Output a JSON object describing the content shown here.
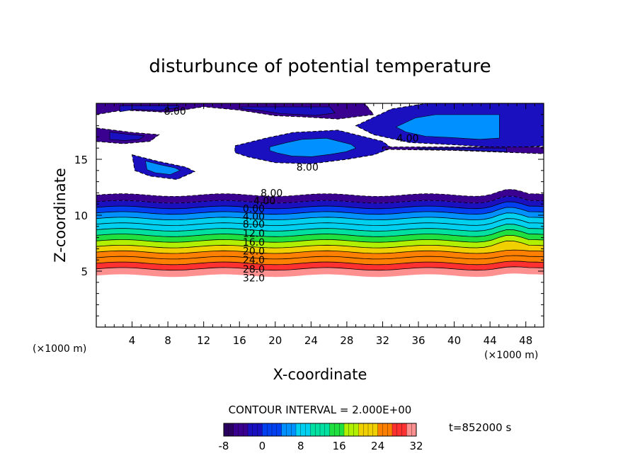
{
  "chart_data": {
    "type": "contour",
    "title": "disturbunce of potential temperature",
    "xlabel": "X-coordinate",
    "ylabel": "Z-coordinate",
    "x_unit_left": "(×1000 m)",
    "x_unit_right": "(×1000 m)",
    "xlim": [
      0,
      50
    ],
    "ylim": [
      0,
      20
    ],
    "x_ticks": [
      4,
      8,
      12,
      16,
      20,
      24,
      28,
      32,
      36,
      40,
      44,
      48
    ],
    "y_ticks": [
      5,
      10,
      15
    ],
    "contour_interval_label": "CONTOUR INTERVAL = 2.000E+00",
    "time_label": "t=852000 s",
    "colorbar": {
      "min": -8,
      "max": 32,
      "ticks": [
        -8,
        0,
        8,
        16,
        24,
        32
      ],
      "colors": [
        "#2a0060",
        "#3a0090",
        "#1a10c0",
        "#0040f0",
        "#0090ff",
        "#00d0f0",
        "#00e0a0",
        "#20e040",
        "#b0f000",
        "#f0d000",
        "#ff8000",
        "#ff3030",
        "#ff9090"
      ]
    },
    "contour_labels": [
      {
        "label": "8.00",
        "x": 8.8,
        "z": 19.3
      },
      {
        "label": "4.00",
        "x": 34.8,
        "z": 16.9
      },
      {
        "label": "8.00",
        "x": 23.6,
        "z": 14.3
      },
      {
        "label": "8.00",
        "x": 19.6,
        "z": 12.0
      },
      {
        "label": "4.00",
        "x": 18.8,
        "z": 11.3
      },
      {
        "label": "0.00",
        "x": 17.6,
        "z": 10.6
      },
      {
        "label": "4.00",
        "x": 17.6,
        "z": 9.9
      },
      {
        "label": "8.00",
        "x": 17.6,
        "z": 9.2
      },
      {
        "label": "12.0",
        "x": 17.6,
        "z": 8.4
      },
      {
        "label": "16.0",
        "x": 17.6,
        "z": 7.6
      },
      {
        "label": "20.0",
        "x": 17.6,
        "z": 6.8
      },
      {
        "label": "24.0",
        "x": 17.6,
        "z": 6.0
      },
      {
        "label": "28.0",
        "x": 17.6,
        "z": 5.2
      },
      {
        "label": "32.0",
        "x": 17.6,
        "z": 4.4
      }
    ],
    "bands_z": [
      {
        "z0": 4.6,
        "z1": 5.2,
        "value": 32
      },
      {
        "z0": 5.2,
        "z1": 5.7,
        "value": 28
      },
      {
        "z0": 5.7,
        "z1": 6.2,
        "value": 26
      },
      {
        "z0": 6.2,
        "z1": 6.7,
        "value": 24
      },
      {
        "z0": 6.7,
        "z1": 7.2,
        "value": 22
      },
      {
        "z0": 7.2,
        "z1": 7.7,
        "value": 19
      },
      {
        "z0": 7.7,
        "z1": 8.2,
        "value": 16
      },
      {
        "z0": 8.2,
        "z1": 8.7,
        "value": 13
      },
      {
        "z0": 8.7,
        "z1": 9.2,
        "value": 10
      },
      {
        "z0": 9.2,
        "z1": 9.7,
        "value": 7
      },
      {
        "z0": 9.7,
        "z1": 10.2,
        "value": 4
      },
      {
        "z0": 10.2,
        "z1": 10.7,
        "value": 1
      },
      {
        "z0": 10.7,
        "z1": 11.2,
        "value": -2
      },
      {
        "z0": 11.2,
        "z1": 11.8,
        "value": -6
      }
    ],
    "upper_regions": [
      {
        "name": "top-left-strip",
        "points": [
          [
            0,
            20
          ],
          [
            12,
            20
          ],
          [
            12,
            19.7
          ],
          [
            8,
            19.2
          ],
          [
            3,
            19.4
          ],
          [
            0,
            19.0
          ]
        ],
        "value": -6
      },
      {
        "name": "left-mid-strip",
        "points": [
          [
            0,
            17.8
          ],
          [
            4,
            17.4
          ],
          [
            7,
            17.2
          ],
          [
            6,
            16.6
          ],
          [
            3,
            16.4
          ],
          [
            0,
            16.6
          ]
        ],
        "value": -6
      },
      {
        "name": "left-blob",
        "points": [
          [
            4,
            15.4
          ],
          [
            7,
            14.8
          ],
          [
            10,
            14.3
          ],
          [
            11,
            13.9
          ],
          [
            9,
            13.2
          ],
          [
            6,
            13.5
          ],
          [
            4.3,
            14.0
          ]
        ],
        "value": 0
      },
      {
        "name": "center-cloud",
        "points": [
          [
            15.5,
            16.2
          ],
          [
            19,
            16.9
          ],
          [
            22,
            17.4
          ],
          [
            27,
            17.6
          ],
          [
            30,
            17.0
          ],
          [
            32,
            16.6
          ],
          [
            33,
            16.0
          ],
          [
            31,
            15.4
          ],
          [
            28,
            15.0
          ],
          [
            24,
            14.6
          ],
          [
            20,
            14.7
          ],
          [
            17,
            15.2
          ],
          [
            15.5,
            15.6
          ]
        ],
        "value": 0
      },
      {
        "name": "right-cloud",
        "points": [
          [
            29,
            18.0
          ],
          [
            33,
            19.5
          ],
          [
            37,
            20
          ],
          [
            50,
            20
          ],
          [
            50,
            16.2
          ],
          [
            46,
            16.0
          ],
          [
            40,
            16.3
          ],
          [
            35,
            16.5
          ],
          [
            31,
            17.2
          ]
        ],
        "value": 0
      },
      {
        "name": "top-strip-mid",
        "points": [
          [
            12,
            20
          ],
          [
            30,
            20
          ],
          [
            31,
            19
          ],
          [
            27,
            18.6
          ],
          [
            23,
            18.8
          ],
          [
            20,
            18.9
          ],
          [
            16,
            19.4
          ],
          [
            12,
            19.7
          ]
        ],
        "value": -6
      },
      {
        "name": "right-lower-strip",
        "points": [
          [
            32,
            16.1
          ],
          [
            50,
            16.1
          ],
          [
            50,
            15.5
          ],
          [
            40,
            15.8
          ],
          [
            32,
            15.9
          ]
        ],
        "value": -6
      }
    ],
    "white_top_z": 11.8
  }
}
